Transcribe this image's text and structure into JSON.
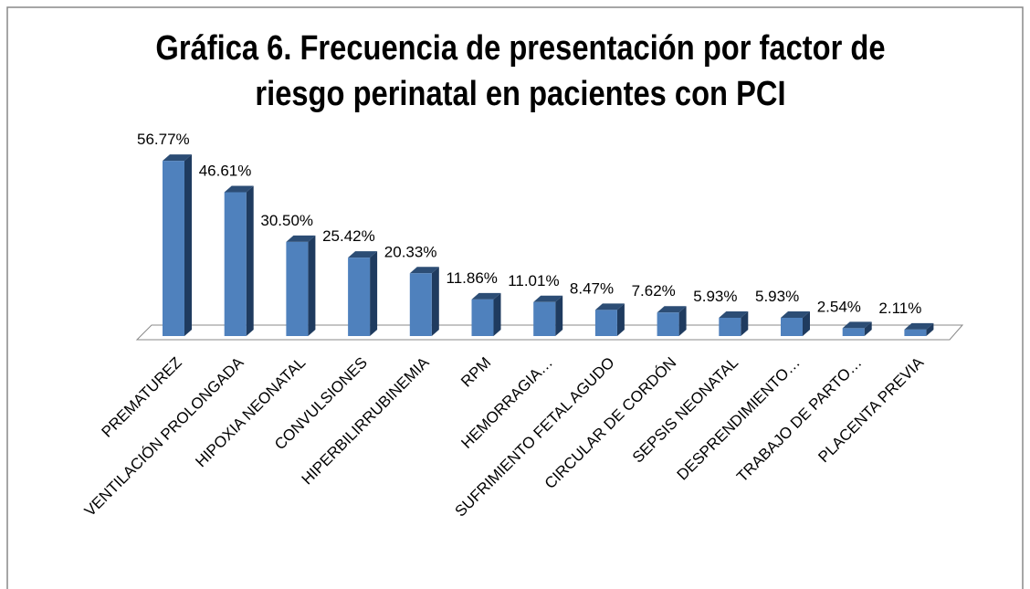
{
  "chart_data": {
    "type": "bar3d",
    "title": "Gráfica 6. Frecuencia de presentación por factor de riesgo perinatal en pacientes con PCI",
    "categories": [
      "PREMATUREZ",
      "VENTILACIÓN PROLONGADA",
      "HIPOXIA NEONATAL",
      "CONVULSIONES",
      "HIPERBILIRRUBINEMIA",
      "RPM",
      "HEMORRAGIA…",
      "SUFRIMIENTO FETAL AGUDO",
      "CIRCULAR DE CORDÓN",
      "SEPSIS NEONATAL",
      "DESPRENDIMIENTO…",
      "TRABAJO DE PARTO…",
      "PLACENTA PREVIA"
    ],
    "values": [
      56.77,
      46.61,
      30.5,
      25.42,
      20.33,
      11.86,
      11.01,
      8.47,
      7.62,
      5.93,
      5.93,
      2.54,
      2.11
    ],
    "value_labels": [
      "56.77%",
      "46.61%",
      "30.50%",
      "25.42%",
      "20.33%",
      "11.86%",
      "11.01%",
      "8.47%",
      "7.62%",
      "5.93%",
      "5.93%",
      "2.54%",
      "2.11%"
    ],
    "color": "#4f81bd"
  }
}
